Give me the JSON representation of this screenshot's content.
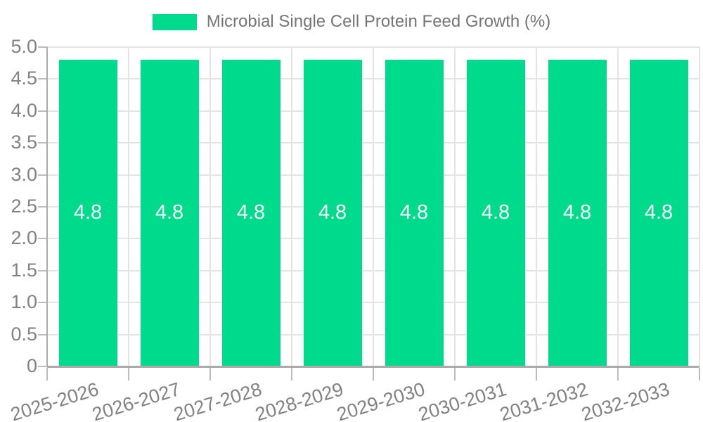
{
  "chart_data": {
    "type": "bar",
    "title": "Microbial Single Cell Protein Feed Growth (%)",
    "legend": {
      "position": "top-center",
      "entries": [
        "Microbial Single Cell Protein Feed Growth (%)"
      ]
    },
    "categories": [
      "2025-2026",
      "2026-2027",
      "2027-2028",
      "2028-2029",
      "2029-2030",
      "2030-2031",
      "2031-2032",
      "2032-2033"
    ],
    "values": [
      4.8,
      4.8,
      4.8,
      4.8,
      4.8,
      4.8,
      4.8,
      4.8
    ],
    "value_labels": [
      "4.8",
      "4.8",
      "4.8",
      "4.8",
      "4.8",
      "4.8",
      "4.8",
      "4.8"
    ],
    "xlabel": "",
    "ylabel": "",
    "ylim": [
      0,
      5
    ],
    "ytick_step": 0.5,
    "ytick_labels": [
      "0",
      "0.5",
      "1.0",
      "1.5",
      "2.0",
      "2.5",
      "3.0",
      "3.5",
      "4.0",
      "4.5",
      "5.0"
    ],
    "grid": true,
    "x_tick_label_rotation_deg": -17,
    "colors": {
      "bar": "#00DA8D",
      "value_label": "#FFFFFF",
      "axis_line": "#ABABAB",
      "grid_line": "#E4E4E4",
      "tick_line": "#BDBDBD",
      "axis_text": "#828282",
      "title_text": "#757575",
      "background": "#FFFFFF"
    }
  }
}
